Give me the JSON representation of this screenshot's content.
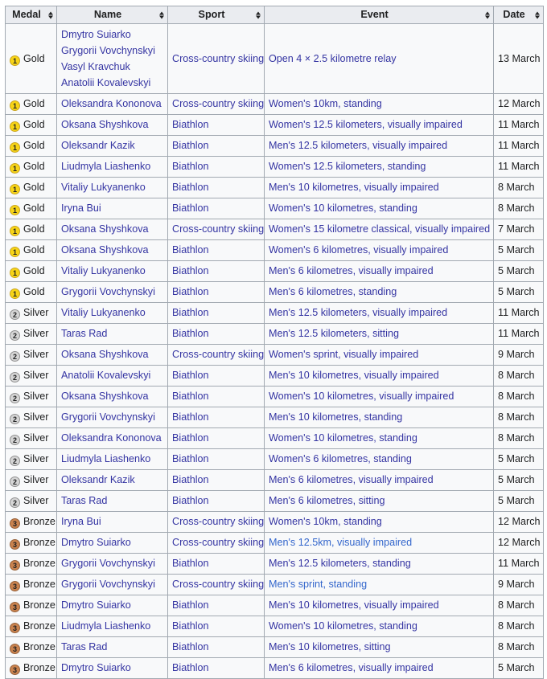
{
  "colors": {
    "border": "#a2a9b1",
    "header_bg": "#eaecf0",
    "cell_bg": "#f8f9fa",
    "visited_link": "#3434a2",
    "new_link": "#3366cc",
    "gold": "#f7d417",
    "silver": "#d5d5d5",
    "bronze": "#c9824e"
  },
  "table": {
    "headers": [
      {
        "label": "Medal"
      },
      {
        "label": "Name"
      },
      {
        "label": "Sport"
      },
      {
        "label": "Event"
      },
      {
        "label": "Date"
      }
    ],
    "rows": [
      {
        "medal": "Gold",
        "rank": "1",
        "names": [
          "Dmytro Suiarko",
          "Grygorii Vovchynskyi",
          "Vasyl Kravchuk",
          "Anatolii Kovalevskyi"
        ],
        "sport": "Cross-country skiing",
        "event": "Open 4 × 2.5 kilometre relay",
        "event_style": "visited",
        "date": "13 March"
      },
      {
        "medal": "Gold",
        "rank": "1",
        "names": [
          "Oleksandra Kononova"
        ],
        "sport": "Cross-country skiing",
        "event": "Women's 10km, standing",
        "event_style": "visited",
        "date": "12 March"
      },
      {
        "medal": "Gold",
        "rank": "1",
        "names": [
          "Oksana Shyshkova"
        ],
        "sport": "Biathlon",
        "event": "Women's 12.5 kilometers, visually impaired",
        "event_style": "visited",
        "date": "11 March"
      },
      {
        "medal": "Gold",
        "rank": "1",
        "names": [
          "Oleksandr Kazik"
        ],
        "sport": "Biathlon",
        "event": "Men's 12.5 kilometers, visually impaired",
        "event_style": "visited",
        "date": "11 March"
      },
      {
        "medal": "Gold",
        "rank": "1",
        "names": [
          "Liudmyla Liashenko"
        ],
        "sport": "Biathlon",
        "event": "Women's 12.5 kilometers, standing",
        "event_style": "visited",
        "date": "11 March"
      },
      {
        "medal": "Gold",
        "rank": "1",
        "names": [
          "Vitaliy Lukyanenko"
        ],
        "sport": "Biathlon",
        "event": "Men's 10 kilometres, visually impaired",
        "event_style": "visited",
        "date": "8 March"
      },
      {
        "medal": "Gold",
        "rank": "1",
        "names": [
          "Iryna Bui"
        ],
        "sport": "Biathlon",
        "event": "Women's 10 kilometres, standing",
        "event_style": "visited",
        "date": "8 March"
      },
      {
        "medal": "Gold",
        "rank": "1",
        "names": [
          "Oksana Shyshkova"
        ],
        "sport": "Cross-country skiing",
        "event": "Women's 15 kilometre classical, visually impaired",
        "event_style": "visited",
        "date": "7 March"
      },
      {
        "medal": "Gold",
        "rank": "1",
        "names": [
          "Oksana Shyshkova"
        ],
        "sport": "Biathlon",
        "event": "Women's 6 kilometres, visually impaired",
        "event_style": "visited",
        "date": "5 March"
      },
      {
        "medal": "Gold",
        "rank": "1",
        "names": [
          "Vitaliy Lukyanenko"
        ],
        "sport": "Biathlon",
        "event": "Men's 6 kilometres, visually impaired",
        "event_style": "visited",
        "date": "5 March"
      },
      {
        "medal": "Gold",
        "rank": "1",
        "names": [
          "Grygorii Vovchynskyi"
        ],
        "sport": "Biathlon",
        "event": "Men's 6 kilometres, standing",
        "event_style": "visited",
        "date": "5 March"
      },
      {
        "medal": "Silver",
        "rank": "2",
        "names": [
          "Vitaliy Lukyanenko"
        ],
        "sport": "Biathlon",
        "event": "Men's 12.5 kilometers, visually impaired",
        "event_style": "visited",
        "date": "11 March"
      },
      {
        "medal": "Silver",
        "rank": "2",
        "names": [
          "Taras Rad"
        ],
        "sport": "Biathlon",
        "event": "Men's 12.5 kilometers, sitting",
        "event_style": "visited",
        "date": "11 March"
      },
      {
        "medal": "Silver",
        "rank": "2",
        "names": [
          "Oksana Shyshkova"
        ],
        "sport": "Cross-country skiing",
        "event": "Women's sprint, visually impaired",
        "event_style": "visited",
        "date": "9 March"
      },
      {
        "medal": "Silver",
        "rank": "2",
        "names": [
          "Anatolii Kovalevskyi"
        ],
        "sport": "Biathlon",
        "event": "Men's 10 kilometres, visually impaired",
        "event_style": "visited",
        "date": "8 March"
      },
      {
        "medal": "Silver",
        "rank": "2",
        "names": [
          "Oksana Shyshkova"
        ],
        "sport": "Biathlon",
        "event": "Women's 10 kilometres, visually impaired",
        "event_style": "visited",
        "date": "8 March"
      },
      {
        "medal": "Silver",
        "rank": "2",
        "names": [
          "Grygorii Vovchynskyi"
        ],
        "sport": "Biathlon",
        "event": "Men's 10 kilometres, standing",
        "event_style": "visited",
        "date": "8 March"
      },
      {
        "medal": "Silver",
        "rank": "2",
        "names": [
          "Oleksandra Kononova"
        ],
        "sport": "Biathlon",
        "event": "Women's 10 kilometres, standing",
        "event_style": "visited",
        "date": "8 March"
      },
      {
        "medal": "Silver",
        "rank": "2",
        "names": [
          "Liudmyla Liashenko"
        ],
        "sport": "Biathlon",
        "event": "Women's 6 kilometres, standing",
        "event_style": "visited",
        "date": "5 March"
      },
      {
        "medal": "Silver",
        "rank": "2",
        "names": [
          "Oleksandr Kazik"
        ],
        "sport": "Biathlon",
        "event": "Men's 6 kilometres, visually impaired",
        "event_style": "visited",
        "date": "5 March"
      },
      {
        "medal": "Silver",
        "rank": "2",
        "names": [
          "Taras Rad"
        ],
        "sport": "Biathlon",
        "event": "Men's 6 kilometres, sitting",
        "event_style": "visited",
        "date": "5 March"
      },
      {
        "medal": "Bronze",
        "rank": "3",
        "names": [
          "Iryna Bui"
        ],
        "sport": "Cross-country skiing",
        "event": "Women's 10km, standing",
        "event_style": "visited",
        "date": "12 March"
      },
      {
        "medal": "Bronze",
        "rank": "3",
        "names": [
          "Dmytro Suiarko"
        ],
        "sport": "Cross-country skiing",
        "event": "Men's 12.5km, visually impaired",
        "event_style": "blue",
        "date": "12 March"
      },
      {
        "medal": "Bronze",
        "rank": "3",
        "names": [
          "Grygorii Vovchynskyi"
        ],
        "sport": "Biathlon",
        "event": "Men's 12.5 kilometers, standing",
        "event_style": "visited",
        "date": "11 March"
      },
      {
        "medal": "Bronze",
        "rank": "3",
        "names": [
          "Grygorii Vovchynskyi"
        ],
        "sport": "Cross-country skiing",
        "event": "Men's sprint, standing",
        "event_style": "blue",
        "date": "9 March"
      },
      {
        "medal": "Bronze",
        "rank": "3",
        "names": [
          "Dmytro Suiarko"
        ],
        "sport": "Biathlon",
        "event": "Men's 10 kilometres, visually impaired",
        "event_style": "visited",
        "date": "8 March"
      },
      {
        "medal": "Bronze",
        "rank": "3",
        "names": [
          "Liudmyla Liashenko"
        ],
        "sport": "Biathlon",
        "event": "Women's 10 kilometres, standing",
        "event_style": "visited",
        "date": "8 March"
      },
      {
        "medal": "Bronze",
        "rank": "3",
        "names": [
          "Taras Rad"
        ],
        "sport": "Biathlon",
        "event": "Men's 10 kilometres, sitting",
        "event_style": "visited",
        "date": "8 March"
      },
      {
        "medal": "Bronze",
        "rank": "3",
        "names": [
          "Dmytro Suiarko"
        ],
        "sport": "Biathlon",
        "event": "Men's 6 kilometres, visually impaired",
        "event_style": "visited",
        "date": "5 March"
      }
    ]
  }
}
